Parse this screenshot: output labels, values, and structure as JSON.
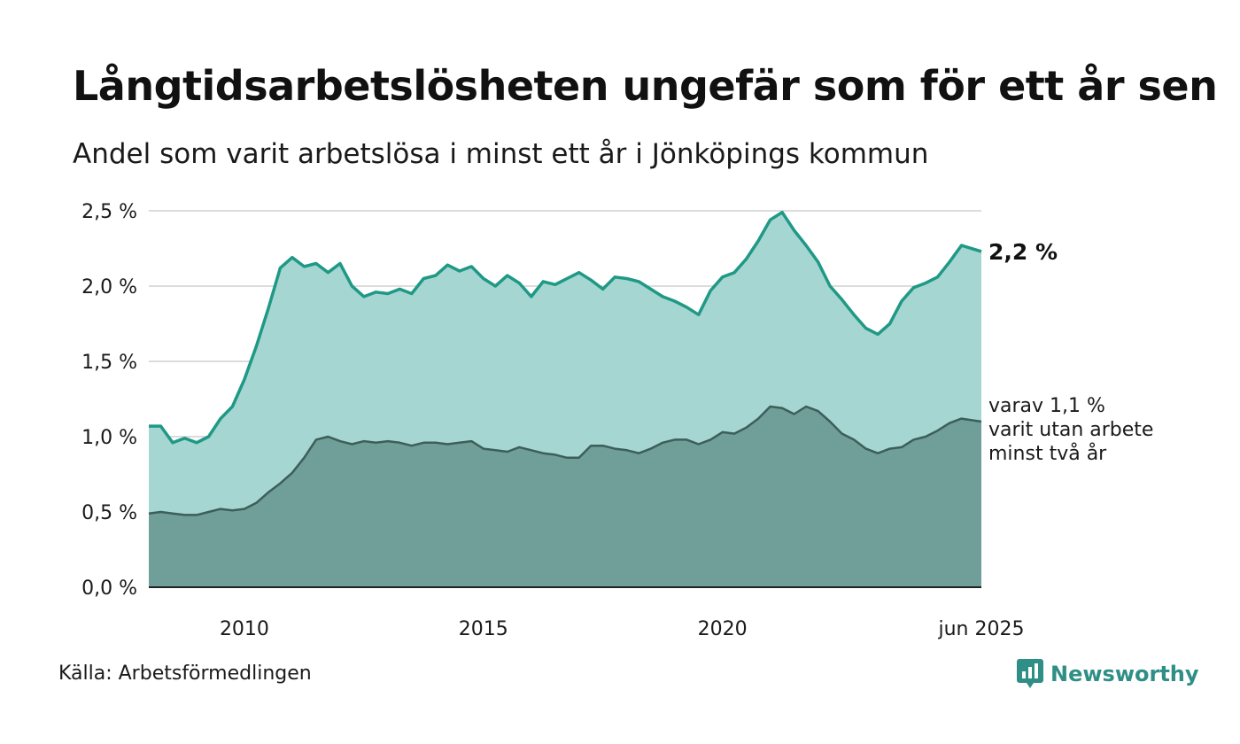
{
  "title": "Långtidsarbetslösheten ungefär som för ett år sen",
  "subtitle": "Andel som varit arbetslösa i minst ett år i Jönköpings kommun",
  "source": "Källa: Arbetsförmedlingen",
  "brand": {
    "name": "Newsworthy",
    "icon": "newsworthy-logo-icon"
  },
  "colors": {
    "area_total": "#a6d6d2",
    "line_total": "#1f9986",
    "area_two_years": "#6f9f98",
    "line_two_years": "#3d5e59",
    "grid": "#dcdcdc",
    "brand": "#2f8f86"
  },
  "annotations": {
    "total_label": "2,2 %",
    "two_year_label": [
      "varav 1,1 %",
      "varit utan arbete",
      "minst två år"
    ]
  },
  "chart_data": {
    "type": "area",
    "ylim": [
      0,
      2.5
    ],
    "y_ticks": [
      {
        "value": 0.0,
        "label": "0,0 %"
      },
      {
        "value": 0.5,
        "label": "0,5 %"
      },
      {
        "value": 1.0,
        "label": "1,0 %"
      },
      {
        "value": 1.5,
        "label": "1,5 %"
      },
      {
        "value": 2.0,
        "label": "2,0 %"
      },
      {
        "value": 2.5,
        "label": "2,5 %"
      }
    ],
    "x_range": [
      "2008-01",
      "2025-06"
    ],
    "x_ticks": [
      {
        "value": "2010-01",
        "label": "2010"
      },
      {
        "value": "2015-01",
        "label": "2015"
      },
      {
        "value": "2020-01",
        "label": "2020"
      },
      {
        "value": "2025-06",
        "label": "jun 2025"
      }
    ],
    "grid": true,
    "series": [
      {
        "points": [
          [
            "2008-01",
            1.07
          ],
          [
            "2008-04",
            1.07
          ],
          [
            "2008-07",
            0.96
          ],
          [
            "2008-10",
            0.99
          ],
          [
            "2009-01",
            0.96
          ],
          [
            "2009-04",
            1.0
          ],
          [
            "2009-07",
            1.12
          ],
          [
            "2009-10",
            1.2
          ],
          [
            "2010-01",
            1.38
          ],
          [
            "2010-04",
            1.6
          ],
          [
            "2010-07",
            1.85
          ],
          [
            "2010-10",
            2.12
          ],
          [
            "2011-01",
            2.19
          ],
          [
            "2011-04",
            2.13
          ],
          [
            "2011-07",
            2.15
          ],
          [
            "2011-10",
            2.09
          ],
          [
            "2012-01",
            2.15
          ],
          [
            "2012-04",
            2.0
          ],
          [
            "2012-07",
            1.93
          ],
          [
            "2012-10",
            1.96
          ],
          [
            "2013-01",
            1.95
          ],
          [
            "2013-04",
            1.98
          ],
          [
            "2013-07",
            1.95
          ],
          [
            "2013-10",
            2.05
          ],
          [
            "2014-01",
            2.07
          ],
          [
            "2014-04",
            2.14
          ],
          [
            "2014-07",
            2.1
          ],
          [
            "2014-10",
            2.13
          ],
          [
            "2015-01",
            2.05
          ],
          [
            "2015-04",
            2.0
          ],
          [
            "2015-07",
            2.07
          ],
          [
            "2015-10",
            2.02
          ],
          [
            "2016-01",
            1.93
          ],
          [
            "2016-04",
            2.03
          ],
          [
            "2016-07",
            2.01
          ],
          [
            "2016-10",
            2.05
          ],
          [
            "2017-01",
            2.09
          ],
          [
            "2017-04",
            2.04
          ],
          [
            "2017-07",
            1.98
          ],
          [
            "2017-10",
            2.06
          ],
          [
            "2018-01",
            2.05
          ],
          [
            "2018-04",
            2.03
          ],
          [
            "2018-07",
            1.98
          ],
          [
            "2018-10",
            1.93
          ],
          [
            "2019-01",
            1.9
          ],
          [
            "2019-04",
            1.86
          ],
          [
            "2019-07",
            1.81
          ],
          [
            "2019-10",
            1.97
          ],
          [
            "2020-01",
            2.06
          ],
          [
            "2020-04",
            2.09
          ],
          [
            "2020-07",
            2.18
          ],
          [
            "2020-10",
            2.3
          ],
          [
            "2021-01",
            2.44
          ],
          [
            "2021-04",
            2.49
          ],
          [
            "2021-07",
            2.37
          ],
          [
            "2021-10",
            2.27
          ],
          [
            "2022-01",
            2.16
          ],
          [
            "2022-04",
            2.0
          ],
          [
            "2022-07",
            1.91
          ],
          [
            "2022-10",
            1.81
          ],
          [
            "2023-01",
            1.72
          ],
          [
            "2023-04",
            1.68
          ],
          [
            "2023-07",
            1.75
          ],
          [
            "2023-10",
            1.9
          ],
          [
            "2024-01",
            1.99
          ],
          [
            "2024-04",
            2.02
          ],
          [
            "2024-07",
            2.06
          ],
          [
            "2024-10",
            2.16
          ],
          [
            "2025-01",
            2.27
          ],
          [
            "2025-06",
            2.23
          ]
        ]
      },
      {
        "points": [
          [
            "2008-01",
            0.49
          ],
          [
            "2008-04",
            0.5
          ],
          [
            "2008-07",
            0.49
          ],
          [
            "2008-10",
            0.48
          ],
          [
            "2009-01",
            0.48
          ],
          [
            "2009-04",
            0.5
          ],
          [
            "2009-07",
            0.52
          ],
          [
            "2009-10",
            0.51
          ],
          [
            "2010-01",
            0.52
          ],
          [
            "2010-04",
            0.56
          ],
          [
            "2010-07",
            0.63
          ],
          [
            "2010-10",
            0.69
          ],
          [
            "2011-01",
            0.76
          ],
          [
            "2011-04",
            0.86
          ],
          [
            "2011-07",
            0.98
          ],
          [
            "2011-10",
            1.0
          ],
          [
            "2012-01",
            0.97
          ],
          [
            "2012-04",
            0.95
          ],
          [
            "2012-07",
            0.97
          ],
          [
            "2012-10",
            0.96
          ],
          [
            "2013-01",
            0.97
          ],
          [
            "2013-04",
            0.96
          ],
          [
            "2013-07",
            0.94
          ],
          [
            "2013-10",
            0.96
          ],
          [
            "2014-01",
            0.96
          ],
          [
            "2014-04",
            0.95
          ],
          [
            "2014-07",
            0.96
          ],
          [
            "2014-10",
            0.97
          ],
          [
            "2015-01",
            0.92
          ],
          [
            "2015-04",
            0.91
          ],
          [
            "2015-07",
            0.9
          ],
          [
            "2015-10",
            0.93
          ],
          [
            "2016-01",
            0.91
          ],
          [
            "2016-04",
            0.89
          ],
          [
            "2016-07",
            0.88
          ],
          [
            "2016-10",
            0.86
          ],
          [
            "2017-01",
            0.86
          ],
          [
            "2017-04",
            0.94
          ],
          [
            "2017-07",
            0.94
          ],
          [
            "2017-10",
            0.92
          ],
          [
            "2018-01",
            0.91
          ],
          [
            "2018-04",
            0.89
          ],
          [
            "2018-07",
            0.92
          ],
          [
            "2018-10",
            0.96
          ],
          [
            "2019-01",
            0.98
          ],
          [
            "2019-04",
            0.98
          ],
          [
            "2019-07",
            0.95
          ],
          [
            "2019-10",
            0.98
          ],
          [
            "2020-01",
            1.03
          ],
          [
            "2020-04",
            1.02
          ],
          [
            "2020-07",
            1.06
          ],
          [
            "2020-10",
            1.12
          ],
          [
            "2021-01",
            1.2
          ],
          [
            "2021-04",
            1.19
          ],
          [
            "2021-07",
            1.15
          ],
          [
            "2021-10",
            1.2
          ],
          [
            "2022-01",
            1.17
          ],
          [
            "2022-04",
            1.1
          ],
          [
            "2022-07",
            1.02
          ],
          [
            "2022-10",
            0.98
          ],
          [
            "2023-01",
            0.92
          ],
          [
            "2023-04",
            0.89
          ],
          [
            "2023-07",
            0.92
          ],
          [
            "2023-10",
            0.93
          ],
          [
            "2024-01",
            0.98
          ],
          [
            "2024-04",
            1.0
          ],
          [
            "2024-07",
            1.04
          ],
          [
            "2024-10",
            1.09
          ],
          [
            "2025-01",
            1.12
          ],
          [
            "2025-06",
            1.1
          ]
        ]
      }
    ]
  }
}
